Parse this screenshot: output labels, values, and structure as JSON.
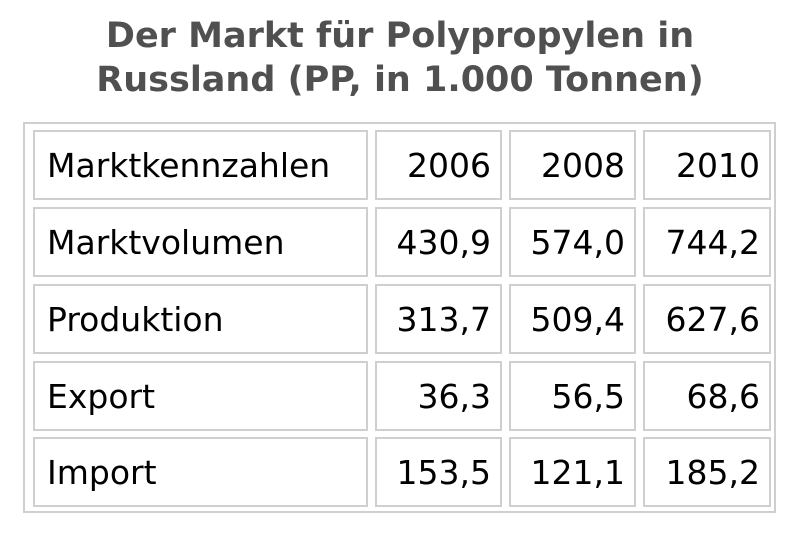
{
  "chart_data": {
    "type": "table",
    "title": "Der Markt für Polypropylen in Russland (PP, in 1.000 Tonnen)",
    "title_lines": [
      "Der Markt für Polypropylen in",
      "Russland (PP, in 1.000 Tonnen)"
    ],
    "header": [
      "Marktkennzahlen",
      "2006",
      "2008",
      "2010"
    ],
    "rows": [
      [
        "Marktvolumen",
        "430,9",
        "574,0",
        "744,2"
      ],
      [
        "Produktion",
        "313,7",
        "509,4",
        "627,6"
      ],
      [
        "Export",
        "36,3",
        "56,5",
        "68,6"
      ],
      [
        "Import",
        "153,5",
        "121,1",
        "185,2"
      ]
    ],
    "values": {
      "Marktvolumen": [
        430.9,
        574.0,
        744.2
      ],
      "Produktion": [
        313.7,
        509.4,
        627.6
      ],
      "Export": [
        36.3,
        56.5,
        68.6
      ],
      "Import": [
        153.5,
        121.1,
        185.2
      ]
    }
  },
  "colors": {
    "title_text": "#505050",
    "cell_text": "#000000",
    "border": "#cfcfcf",
    "background": "#ffffff"
  }
}
